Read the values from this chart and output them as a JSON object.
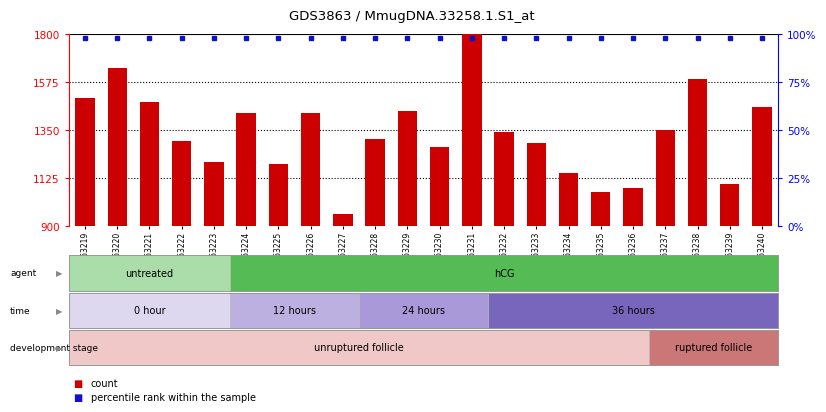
{
  "title": "GDS3863 / MmugDNA.33258.1.S1_at",
  "samples": [
    "GSM563219",
    "GSM563220",
    "GSM563221",
    "GSM563222",
    "GSM563223",
    "GSM563224",
    "GSM563225",
    "GSM563226",
    "GSM563227",
    "GSM563228",
    "GSM563229",
    "GSM563230",
    "GSM563231",
    "GSM563232",
    "GSM563233",
    "GSM563234",
    "GSM563235",
    "GSM563236",
    "GSM563237",
    "GSM563238",
    "GSM563239",
    "GSM563240"
  ],
  "counts": [
    1500,
    1640,
    1480,
    1300,
    1200,
    1430,
    1190,
    1430,
    960,
    1310,
    1440,
    1270,
    1800,
    1340,
    1290,
    1150,
    1060,
    1080,
    1350,
    1590,
    1100,
    1460
  ],
  "bar_color": "#cc0000",
  "dot_color": "#1010cc",
  "ylim_left": [
    900,
    1800
  ],
  "ylim_right": [
    0,
    100
  ],
  "yticks_left": [
    900,
    1125,
    1350,
    1575,
    1800
  ],
  "yticks_right": [
    0,
    25,
    50,
    75,
    100
  ],
  "grid_lines": [
    1125,
    1350,
    1575
  ],
  "agent_labels": [
    {
      "text": "untreated",
      "start": 0,
      "end": 5,
      "color": "#aaddaa"
    },
    {
      "text": "hCG",
      "start": 5,
      "end": 22,
      "color": "#55bb55"
    }
  ],
  "time_labels": [
    {
      "text": "0 hour",
      "start": 0,
      "end": 5,
      "color": "#ddd8f0"
    },
    {
      "text": "12 hours",
      "start": 5,
      "end": 9,
      "color": "#bbb0e0"
    },
    {
      "text": "24 hours",
      "start": 9,
      "end": 13,
      "color": "#aa99d8"
    },
    {
      "text": "36 hours",
      "start": 13,
      "end": 22,
      "color": "#7766bb"
    }
  ],
  "dev_labels": [
    {
      "text": "unruptured follicle",
      "start": 0,
      "end": 18,
      "color": "#f0c8c8"
    },
    {
      "text": "ruptured follicle",
      "start": 18,
      "end": 22,
      "color": "#cc7777"
    }
  ],
  "background_color": "#ffffff",
  "legend_items": [
    {
      "color": "#cc0000",
      "label": "count"
    },
    {
      "color": "#1010cc",
      "label": "percentile rank within the sample"
    }
  ],
  "row_labels": [
    "agent",
    "time",
    "development stage"
  ]
}
